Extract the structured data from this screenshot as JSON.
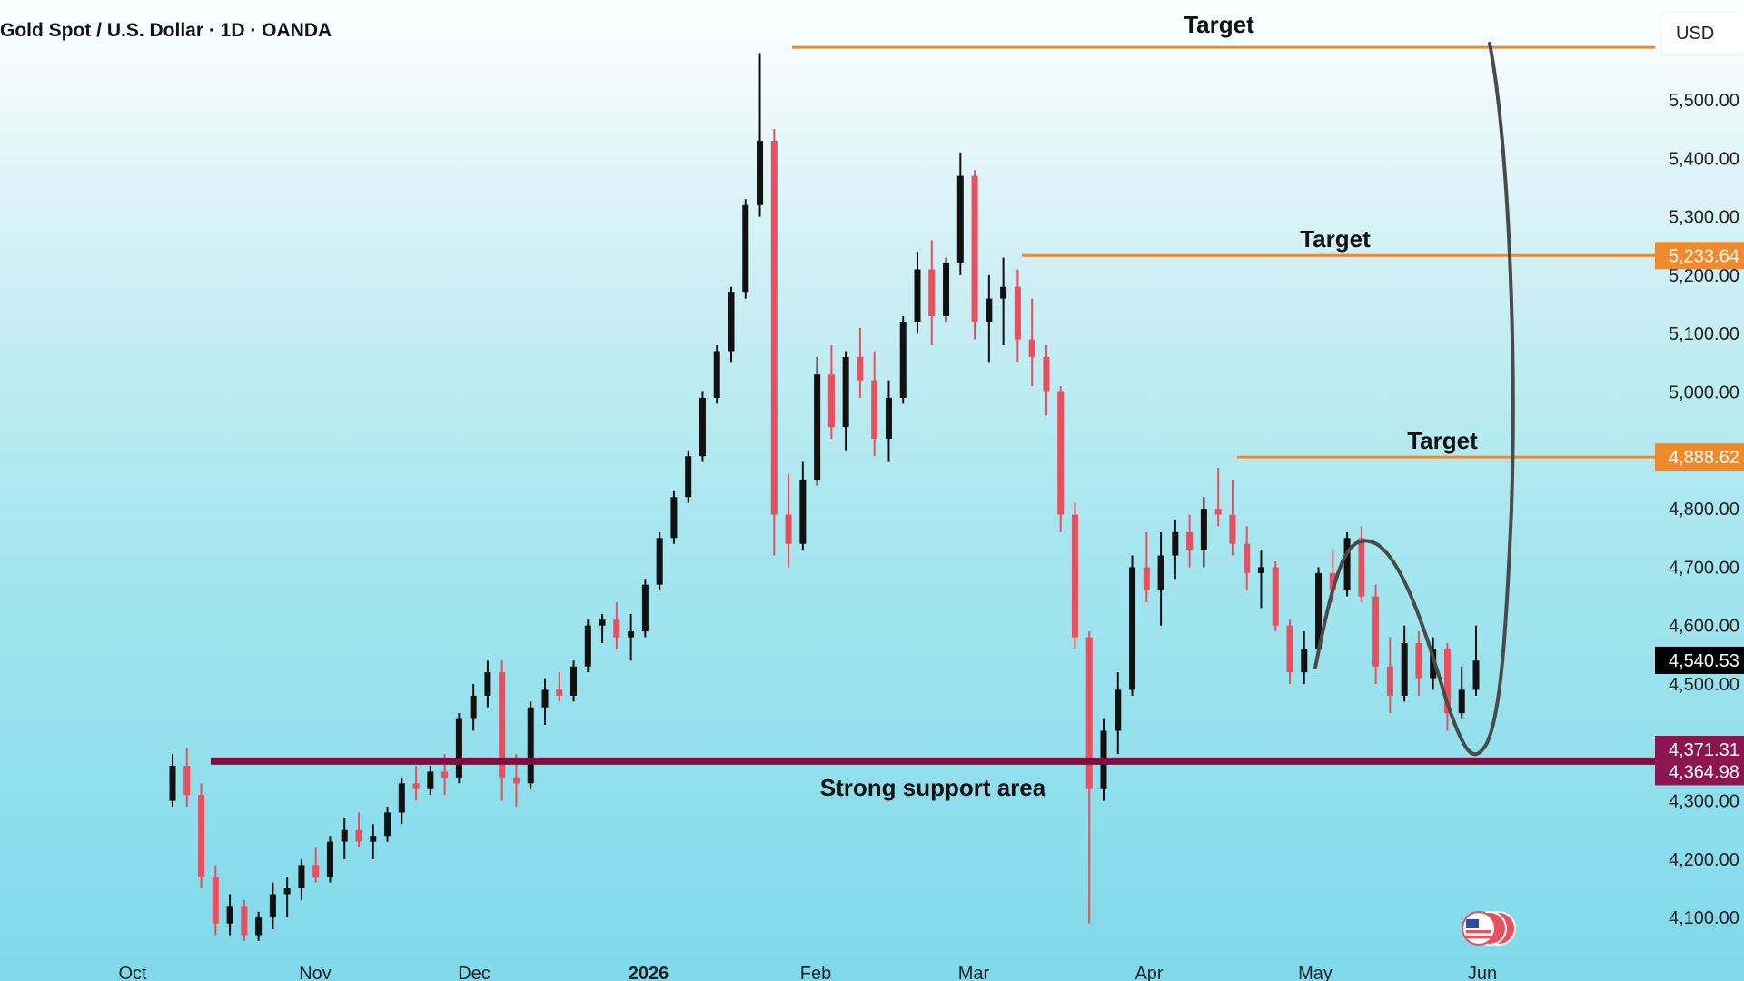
{
  "header": {
    "title": "Gold Spot / U.S. Dollar · 1D · OANDA",
    "currency": "USD"
  },
  "colors": {
    "bull": "#111111",
    "bear": "#e8505f",
    "target_line": "#f08a2e",
    "support": "#7a1140",
    "curve": "#4a4a4a",
    "last_price_bg": "#000000",
    "target_label_bg": "#f08a2e",
    "support_label_bg": "#8c1550"
  },
  "chart_data": {
    "type": "candlestick",
    "y_axis": {
      "ticks": [
        "5,500.00",
        "5,400.00",
        "5,300.00",
        "5,200.00",
        "5,100.00",
        "5,000.00",
        "4,900.00",
        "4,800.00",
        "4,700.00",
        "4,600.00",
        "4,500.00",
        "4,400.00",
        "4,300.00",
        "4,200.00",
        "4,100.00"
      ],
      "tick_values": [
        5500,
        5400,
        5300,
        5200,
        5100,
        5000,
        4900,
        4800,
        4700,
        4600,
        4500,
        4400,
        4300,
        4200,
        4100
      ],
      "range": [
        4050,
        5600
      ]
    },
    "x_axis": {
      "labels": [
        "Oct",
        "Nov",
        "Dec",
        "2026",
        "Feb",
        "Mar",
        "Apr",
        "May",
        "Jun"
      ],
      "bold_label": "2026"
    },
    "price_labels": {
      "last": "4,540.53",
      "target_1": "5,233.64",
      "target_2": "4,888.62",
      "support_top": "4,371.31",
      "support_bottom": "4,364.98"
    },
    "annotations": {
      "target_top": "Target",
      "target_mid": "Target",
      "target_low": "Target",
      "support": "Strong support area"
    },
    "targets": [
      5590,
      5233.64,
      4888.62
    ],
    "support_level": 4368,
    "candles": [
      [
        4300,
        4380,
        4290,
        4360
      ],
      [
        4360,
        4390,
        4290,
        4310
      ],
      [
        4310,
        4330,
        4150,
        4170
      ],
      [
        4170,
        4190,
        4070,
        4090
      ],
      [
        4090,
        4140,
        4070,
        4120
      ],
      [
        4120,
        4130,
        4060,
        4070
      ],
      [
        4070,
        4110,
        4060,
        4100
      ],
      [
        4100,
        4160,
        4080,
        4140
      ],
      [
        4140,
        4170,
        4100,
        4150
      ],
      [
        4150,
        4200,
        4130,
        4190
      ],
      [
        4190,
        4220,
        4160,
        4170
      ],
      [
        4170,
        4240,
        4160,
        4230
      ],
      [
        4230,
        4270,
        4200,
        4250
      ],
      [
        4250,
        4280,
        4220,
        4230
      ],
      [
        4230,
        4260,
        4200,
        4240
      ],
      [
        4240,
        4290,
        4230,
        4280
      ],
      [
        4280,
        4340,
        4260,
        4330
      ],
      [
        4330,
        4360,
        4300,
        4320
      ],
      [
        4320,
        4360,
        4310,
        4350
      ],
      [
        4350,
        4380,
        4310,
        4340
      ],
      [
        4340,
        4450,
        4330,
        4440
      ],
      [
        4440,
        4500,
        4420,
        4480
      ],
      [
        4480,
        4540,
        4460,
        4520
      ],
      [
        4520,
        4540,
        4300,
        4340
      ],
      [
        4340,
        4380,
        4290,
        4330
      ],
      [
        4330,
        4470,
        4320,
        4460
      ],
      [
        4460,
        4510,
        4430,
        4490
      ],
      [
        4490,
        4520,
        4470,
        4480
      ],
      [
        4480,
        4540,
        4470,
        4530
      ],
      [
        4530,
        4610,
        4520,
        4600
      ],
      [
        4600,
        4620,
        4570,
        4610
      ],
      [
        4610,
        4640,
        4560,
        4580
      ],
      [
        4580,
        4620,
        4540,
        4590
      ],
      [
        4590,
        4680,
        4580,
        4670
      ],
      [
        4670,
        4760,
        4660,
        4750
      ],
      [
        4750,
        4830,
        4740,
        4820
      ],
      [
        4820,
        4900,
        4810,
        4890
      ],
      [
        4890,
        5000,
        4880,
        4990
      ],
      [
        4990,
        5080,
        4980,
        5070
      ],
      [
        5070,
        5180,
        5050,
        5170
      ],
      [
        5170,
        5330,
        5160,
        5320
      ],
      [
        5320,
        5580,
        5300,
        5430
      ],
      [
        5430,
        5450,
        4720,
        4790
      ],
      [
        4790,
        4860,
        4700,
        4740
      ],
      [
        4740,
        4880,
        4730,
        4850
      ],
      [
        4850,
        5060,
        4840,
        5030
      ],
      [
        5030,
        5080,
        4920,
        4940
      ],
      [
        4940,
        5070,
        4900,
        5060
      ],
      [
        5060,
        5110,
        4990,
        5020
      ],
      [
        5020,
        5070,
        4890,
        4920
      ],
      [
        4920,
        5020,
        4880,
        4990
      ],
      [
        4990,
        5130,
        4980,
        5120
      ],
      [
        5120,
        5240,
        5100,
        5210
      ],
      [
        5210,
        5260,
        5080,
        5130
      ],
      [
        5130,
        5230,
        5120,
        5220
      ],
      [
        5220,
        5410,
        5200,
        5370
      ],
      [
        5370,
        5380,
        5090,
        5120
      ],
      [
        5120,
        5200,
        5050,
        5160
      ],
      [
        5160,
        5230,
        5080,
        5180
      ],
      [
        5180,
        5210,
        5050,
        5090
      ],
      [
        5090,
        5160,
        5010,
        5060
      ],
      [
        5060,
        5080,
        4960,
        5000
      ],
      [
        5000,
        5010,
        4760,
        4790
      ],
      [
        4790,
        4810,
        4560,
        4580
      ],
      [
        4580,
        4590,
        4090,
        4320
      ],
      [
        4320,
        4440,
        4300,
        4420
      ],
      [
        4420,
        4520,
        4380,
        4490
      ],
      [
        4490,
        4720,
        4480,
        4700
      ],
      [
        4700,
        4760,
        4640,
        4660
      ],
      [
        4660,
        4760,
        4600,
        4720
      ],
      [
        4720,
        4780,
        4680,
        4760
      ],
      [
        4760,
        4790,
        4700,
        4730
      ],
      [
        4730,
        4820,
        4700,
        4800
      ],
      [
        4800,
        4870,
        4770,
        4790
      ],
      [
        4790,
        4850,
        4720,
        4740
      ],
      [
        4740,
        4770,
        4660,
        4690
      ],
      [
        4690,
        4730,
        4630,
        4700
      ],
      [
        4700,
        4710,
        4590,
        4600
      ],
      [
        4600,
        4610,
        4500,
        4520
      ],
      [
        4520,
        4590,
        4500,
        4560
      ],
      [
        4560,
        4700,
        4550,
        4690
      ],
      [
        4690,
        4730,
        4640,
        4660
      ],
      [
        4660,
        4760,
        4650,
        4750
      ],
      [
        4750,
        4770,
        4640,
        4650
      ],
      [
        4650,
        4670,
        4500,
        4530
      ],
      [
        4530,
        4580,
        4450,
        4480
      ],
      [
        4480,
        4600,
        4470,
        4570
      ],
      [
        4570,
        4590,
        4480,
        4510
      ],
      [
        4510,
        4580,
        4490,
        4560
      ],
      [
        4560,
        4570,
        4420,
        4450
      ],
      [
        4450,
        4530,
        4440,
        4490
      ],
      [
        4490,
        4600,
        4480,
        4540
      ]
    ]
  }
}
